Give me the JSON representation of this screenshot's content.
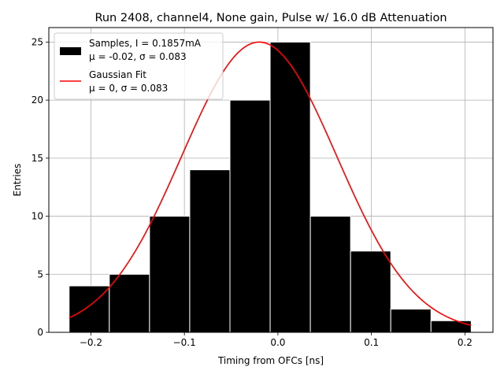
{
  "chart_data": {
    "type": "bar",
    "title": "Run 2408, channel4, None gain, Pulse w/ 16.0 dB Attenuation",
    "xlabel": "Timing from OFCs [ns]",
    "ylabel": "Entries",
    "xlim": [
      -0.245,
      0.23
    ],
    "ylim": [
      0,
      26.25
    ],
    "grid": true,
    "legend_position": "upper left",
    "xticks": [
      -0.2,
      -0.1,
      0.0,
      0.1,
      0.2
    ],
    "xtick_labels": [
      "−0.2",
      "−0.1",
      "0.0",
      "0.1",
      "0.2"
    ],
    "yticks": [
      0,
      5,
      10,
      15,
      20,
      25
    ],
    "ytick_labels": [
      "0",
      "5",
      "10",
      "15",
      "20",
      "25"
    ],
    "histogram": {
      "name": "Samples, I = 0.1857mA",
      "stats_label": "μ = -0.02, σ = 0.083",
      "color": "#000000",
      "edge_color": "#ffffff",
      "bin_edges": [
        -0.2233,
        -0.1803,
        -0.1373,
        -0.0943,
        -0.0513,
        -0.0083,
        0.0347,
        0.0777,
        0.1207,
        0.1637,
        0.2067
      ],
      "counts": [
        4,
        5,
        10,
        14,
        20,
        25,
        10,
        7,
        2,
        1
      ]
    },
    "fit": {
      "name": "Gaussian Fit",
      "stats_label": "μ = 0, σ = 0.083",
      "color": "#ff0000",
      "amplitude": 25.0,
      "mean": -0.02,
      "sigma": 0.083,
      "x_range": [
        -0.2233,
        0.2067
      ]
    }
  }
}
